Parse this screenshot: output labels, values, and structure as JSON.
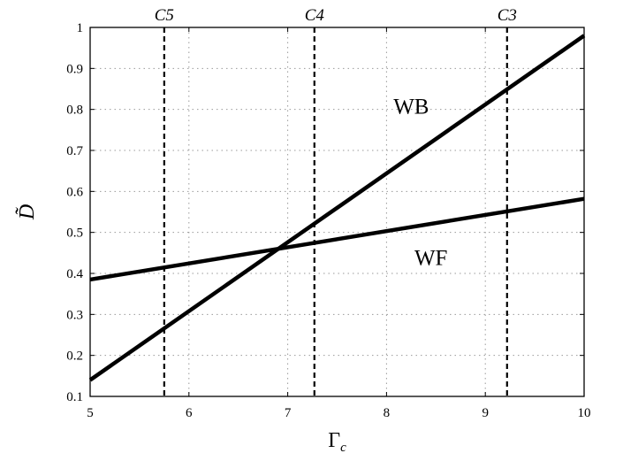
{
  "chart_data": {
    "type": "line",
    "xlabel_base": "Γ",
    "xlabel_sub": "c",
    "ylabel": "D̃",
    "xlim": [
      5,
      10
    ],
    "ylim": [
      0.1,
      1
    ],
    "x_ticks": [
      5,
      6,
      7,
      8,
      9,
      10
    ],
    "y_ticks": [
      0.1,
      0.2,
      0.3,
      0.4,
      0.5,
      0.6,
      0.7,
      0.8,
      0.9,
      1
    ],
    "x_tick_labels": [
      "5",
      "6",
      "7",
      "8",
      "9",
      "10"
    ],
    "y_tick_labels": [
      "0.1",
      "0.2",
      "0.3",
      "0.4",
      "0.5",
      "0.6",
      "0.7",
      "0.8",
      "0.9",
      "1"
    ],
    "grid": true,
    "series": [
      {
        "name": "WB",
        "x": [
          5,
          10
        ],
        "y": [
          0.14,
          0.98
        ],
        "label_at": [
          8.25,
          0.79
        ]
      },
      {
        "name": "WF",
        "x": [
          5,
          10
        ],
        "y": [
          0.385,
          0.582
        ],
        "label_at": [
          8.45,
          0.42
        ]
      }
    ],
    "vertical_lines": [
      {
        "label": "C5",
        "x": 5.75
      },
      {
        "label": "C4",
        "x": 7.27
      },
      {
        "label": "C3",
        "x": 9.22
      }
    ]
  }
}
